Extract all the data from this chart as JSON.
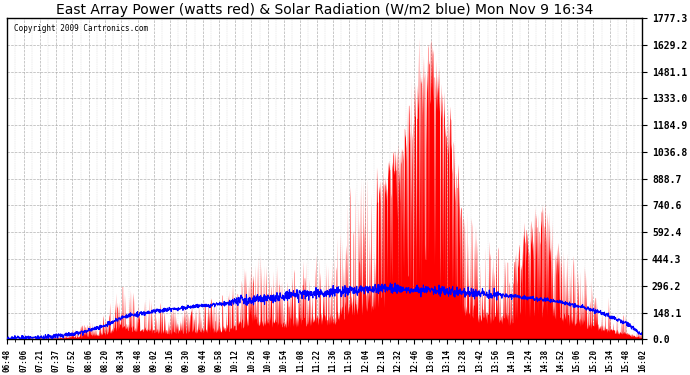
{
  "title": "East Array Power (watts red) & Solar Radiation (W/m2 blue) Mon Nov 9 16:34",
  "copyright": "Copyright 2009 Cartronics.com",
  "ylabel_right_values": [
    0.0,
    148.1,
    296.2,
    444.3,
    592.4,
    740.6,
    888.7,
    1036.8,
    1184.9,
    1333.0,
    1481.1,
    1629.2,
    1777.3
  ],
  "ymax": 1777.3,
  "ymin": 0.0,
  "bg_color": "#ffffff",
  "plot_bg_color": "#ffffff",
  "grid_color": "#aaaaaa",
  "bar_color": "#ff0000",
  "line_color": "#0000ff",
  "title_fontsize": 10,
  "x_tick_labels": [
    "06:48",
    "07:06",
    "07:21",
    "07:37",
    "07:52",
    "08:06",
    "08:20",
    "08:34",
    "08:48",
    "09:02",
    "09:16",
    "09:30",
    "09:44",
    "09:58",
    "10:12",
    "10:26",
    "10:40",
    "10:54",
    "11:08",
    "11:22",
    "11:36",
    "11:50",
    "12:04",
    "12:18",
    "12:32",
    "12:46",
    "13:00",
    "13:14",
    "13:28",
    "13:42",
    "13:56",
    "14:10",
    "14:24",
    "14:38",
    "14:52",
    "15:06",
    "15:20",
    "15:34",
    "15:48",
    "16:02"
  ],
  "power_envelope": [
    15,
    18,
    22,
    30,
    50,
    80,
    130,
    280,
    220,
    180,
    160,
    170,
    190,
    200,
    280,
    420,
    380,
    350,
    370,
    400,
    430,
    700,
    780,
    900,
    1050,
    1400,
    1600,
    1300,
    700,
    500,
    450,
    420,
    600,
    700,
    430,
    380,
    300,
    200,
    120,
    30
  ],
  "radiation_envelope": [
    5,
    8,
    12,
    18,
    30,
    50,
    75,
    120,
    140,
    155,
    165,
    175,
    185,
    195,
    205,
    220,
    230,
    240,
    248,
    255,
    260,
    270,
    275,
    280,
    280,
    275,
    270,
    265,
    260,
    255,
    248,
    240,
    230,
    220,
    205,
    185,
    160,
    130,
    90,
    25
  ],
  "spike_seed": 1234
}
